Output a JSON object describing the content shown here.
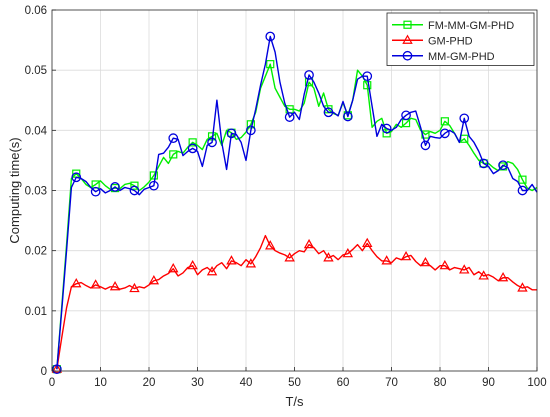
{
  "chart_data": {
    "type": "line",
    "title": "",
    "xlabel": "T/s",
    "ylabel": "Computing time(s)",
    "xlim": [
      0,
      100
    ],
    "ylim": [
      0,
      0.06
    ],
    "x_ticks": [
      "0",
      "10",
      "20",
      "30",
      "40",
      "50",
      "60",
      "70",
      "80",
      "90",
      "100"
    ],
    "y_ticks": [
      "0",
      "0.01",
      "0.02",
      "0.03",
      "0.04",
      "0.05",
      "0.06"
    ],
    "grid": true,
    "legend_position": "top-right",
    "x": [
      1,
      2,
      3,
      4,
      5,
      6,
      7,
      8,
      9,
      10,
      11,
      12,
      13,
      14,
      15,
      16,
      17,
      18,
      19,
      20,
      21,
      22,
      23,
      24,
      25,
      26,
      27,
      28,
      29,
      30,
      31,
      32,
      33,
      34,
      35,
      36,
      37,
      38,
      39,
      40,
      41,
      42,
      43,
      44,
      45,
      46,
      47,
      48,
      49,
      50,
      51,
      52,
      53,
      54,
      55,
      56,
      57,
      58,
      59,
      60,
      61,
      62,
      63,
      64,
      65,
      66,
      67,
      68,
      69,
      70,
      71,
      72,
      73,
      74,
      75,
      76,
      77,
      78,
      79,
      80,
      81,
      82,
      83,
      84,
      85,
      86,
      87,
      88,
      89,
      90,
      91,
      92,
      93,
      94,
      95,
      96,
      97,
      98,
      99,
      100
    ],
    "marker_every": 4,
    "marker_offset": 0,
    "series": [
      {
        "name": "FM-MM-GM-PHD",
        "color": "#00ee00",
        "marker": "square",
        "values": [
          0.0003,
          0.0106,
          0.021,
          0.032,
          0.0328,
          0.032,
          0.031,
          0.0305,
          0.031,
          0.0316,
          0.0308,
          0.0302,
          0.0304,
          0.0303,
          0.031,
          0.0312,
          0.0308,
          0.03,
          0.0306,
          0.0314,
          0.0325,
          0.034,
          0.0355,
          0.0345,
          0.036,
          0.0365,
          0.0362,
          0.0372,
          0.038,
          0.0375,
          0.0368,
          0.0385,
          0.039,
          0.0395,
          0.0375,
          0.04,
          0.0396,
          0.0385,
          0.0388,
          0.0397,
          0.041,
          0.043,
          0.047,
          0.049,
          0.051,
          0.047,
          0.0455,
          0.044,
          0.0435,
          0.0435,
          0.0432,
          0.0445,
          0.048,
          0.047,
          0.044,
          0.0462,
          0.0435,
          0.0428,
          0.0425,
          0.0446,
          0.0425,
          0.045,
          0.05,
          0.049,
          0.0475,
          0.0405,
          0.0415,
          0.042,
          0.0395,
          0.0398,
          0.041,
          0.0405,
          0.0412,
          0.042,
          0.0418,
          0.04,
          0.0393,
          0.0398,
          0.0395,
          0.04,
          0.0415,
          0.0408,
          0.0395,
          0.038,
          0.0386,
          0.0375,
          0.0362,
          0.035,
          0.0345,
          0.0345,
          0.0338,
          0.0333,
          0.034,
          0.0348,
          0.0345,
          0.0335,
          0.0318,
          0.0304,
          0.03,
          0.0305
        ]
      },
      {
        "name": "GM-PHD",
        "color": "#ff0000",
        "marker": "triangle",
        "values": [
          0.0003,
          0.0055,
          0.0105,
          0.014,
          0.0145,
          0.0147,
          0.0142,
          0.0138,
          0.0143,
          0.014,
          0.0136,
          0.014,
          0.014,
          0.0136,
          0.0138,
          0.0142,
          0.0137,
          0.014,
          0.0138,
          0.0143,
          0.015,
          0.0152,
          0.0158,
          0.0162,
          0.017,
          0.0158,
          0.0163,
          0.0172,
          0.0175,
          0.016,
          0.0168,
          0.0172,
          0.0165,
          0.0175,
          0.018,
          0.017,
          0.0183,
          0.018,
          0.0175,
          0.0185,
          0.0178,
          0.019,
          0.0205,
          0.0225,
          0.0208,
          0.02,
          0.0196,
          0.0193,
          0.0188,
          0.0195,
          0.02,
          0.0198,
          0.021,
          0.0205,
          0.0195,
          0.02,
          0.0188,
          0.0192,
          0.0185,
          0.0193,
          0.0195,
          0.0202,
          0.021,
          0.02,
          0.0212,
          0.02,
          0.019,
          0.0183,
          0.0183,
          0.018,
          0.0188,
          0.0185,
          0.019,
          0.0192,
          0.0182,
          0.0175,
          0.018,
          0.0175,
          0.0168,
          0.0175,
          0.0175,
          0.0168,
          0.0172,
          0.017,
          0.0168,
          0.0172,
          0.016,
          0.0165,
          0.0158,
          0.016,
          0.0156,
          0.015,
          0.0155,
          0.0155,
          0.0148,
          0.0142,
          0.0138,
          0.014,
          0.0135,
          0.0135
        ]
      },
      {
        "name": "MM-GM-PHD",
        "color": "#0000dd",
        "marker": "circle",
        "values": [
          0.0003,
          0.01,
          0.02,
          0.0305,
          0.0322,
          0.032,
          0.0315,
          0.0305,
          0.0298,
          0.0303,
          0.0296,
          0.03,
          0.0306,
          0.03,
          0.0305,
          0.0303,
          0.03,
          0.0293,
          0.0302,
          0.0305,
          0.0308,
          0.036,
          0.0362,
          0.0372,
          0.0387,
          0.0385,
          0.0358,
          0.0365,
          0.037,
          0.0365,
          0.034,
          0.0375,
          0.038,
          0.045,
          0.038,
          0.0335,
          0.0395,
          0.0393,
          0.038,
          0.035,
          0.04,
          0.0435,
          0.0475,
          0.051,
          0.0556,
          0.053,
          0.048,
          0.0445,
          0.0422,
          0.043,
          0.0418,
          0.046,
          0.0492,
          0.048,
          0.0462,
          0.044,
          0.043,
          0.043,
          0.0424,
          0.0448,
          0.0423,
          0.045,
          0.0485,
          0.049,
          0.049,
          0.044,
          0.039,
          0.041,
          0.0403,
          0.04,
          0.0405,
          0.0418,
          0.0425,
          0.043,
          0.0432,
          0.0405,
          0.0375,
          0.039,
          0.0388,
          0.0387,
          0.0395,
          0.04,
          0.0395,
          0.038,
          0.042,
          0.039,
          0.038,
          0.0365,
          0.0345,
          0.034,
          0.0328,
          0.0333,
          0.0342,
          0.0338,
          0.032,
          0.0315,
          0.03,
          0.03,
          0.031,
          0.0297
        ]
      }
    ]
  }
}
